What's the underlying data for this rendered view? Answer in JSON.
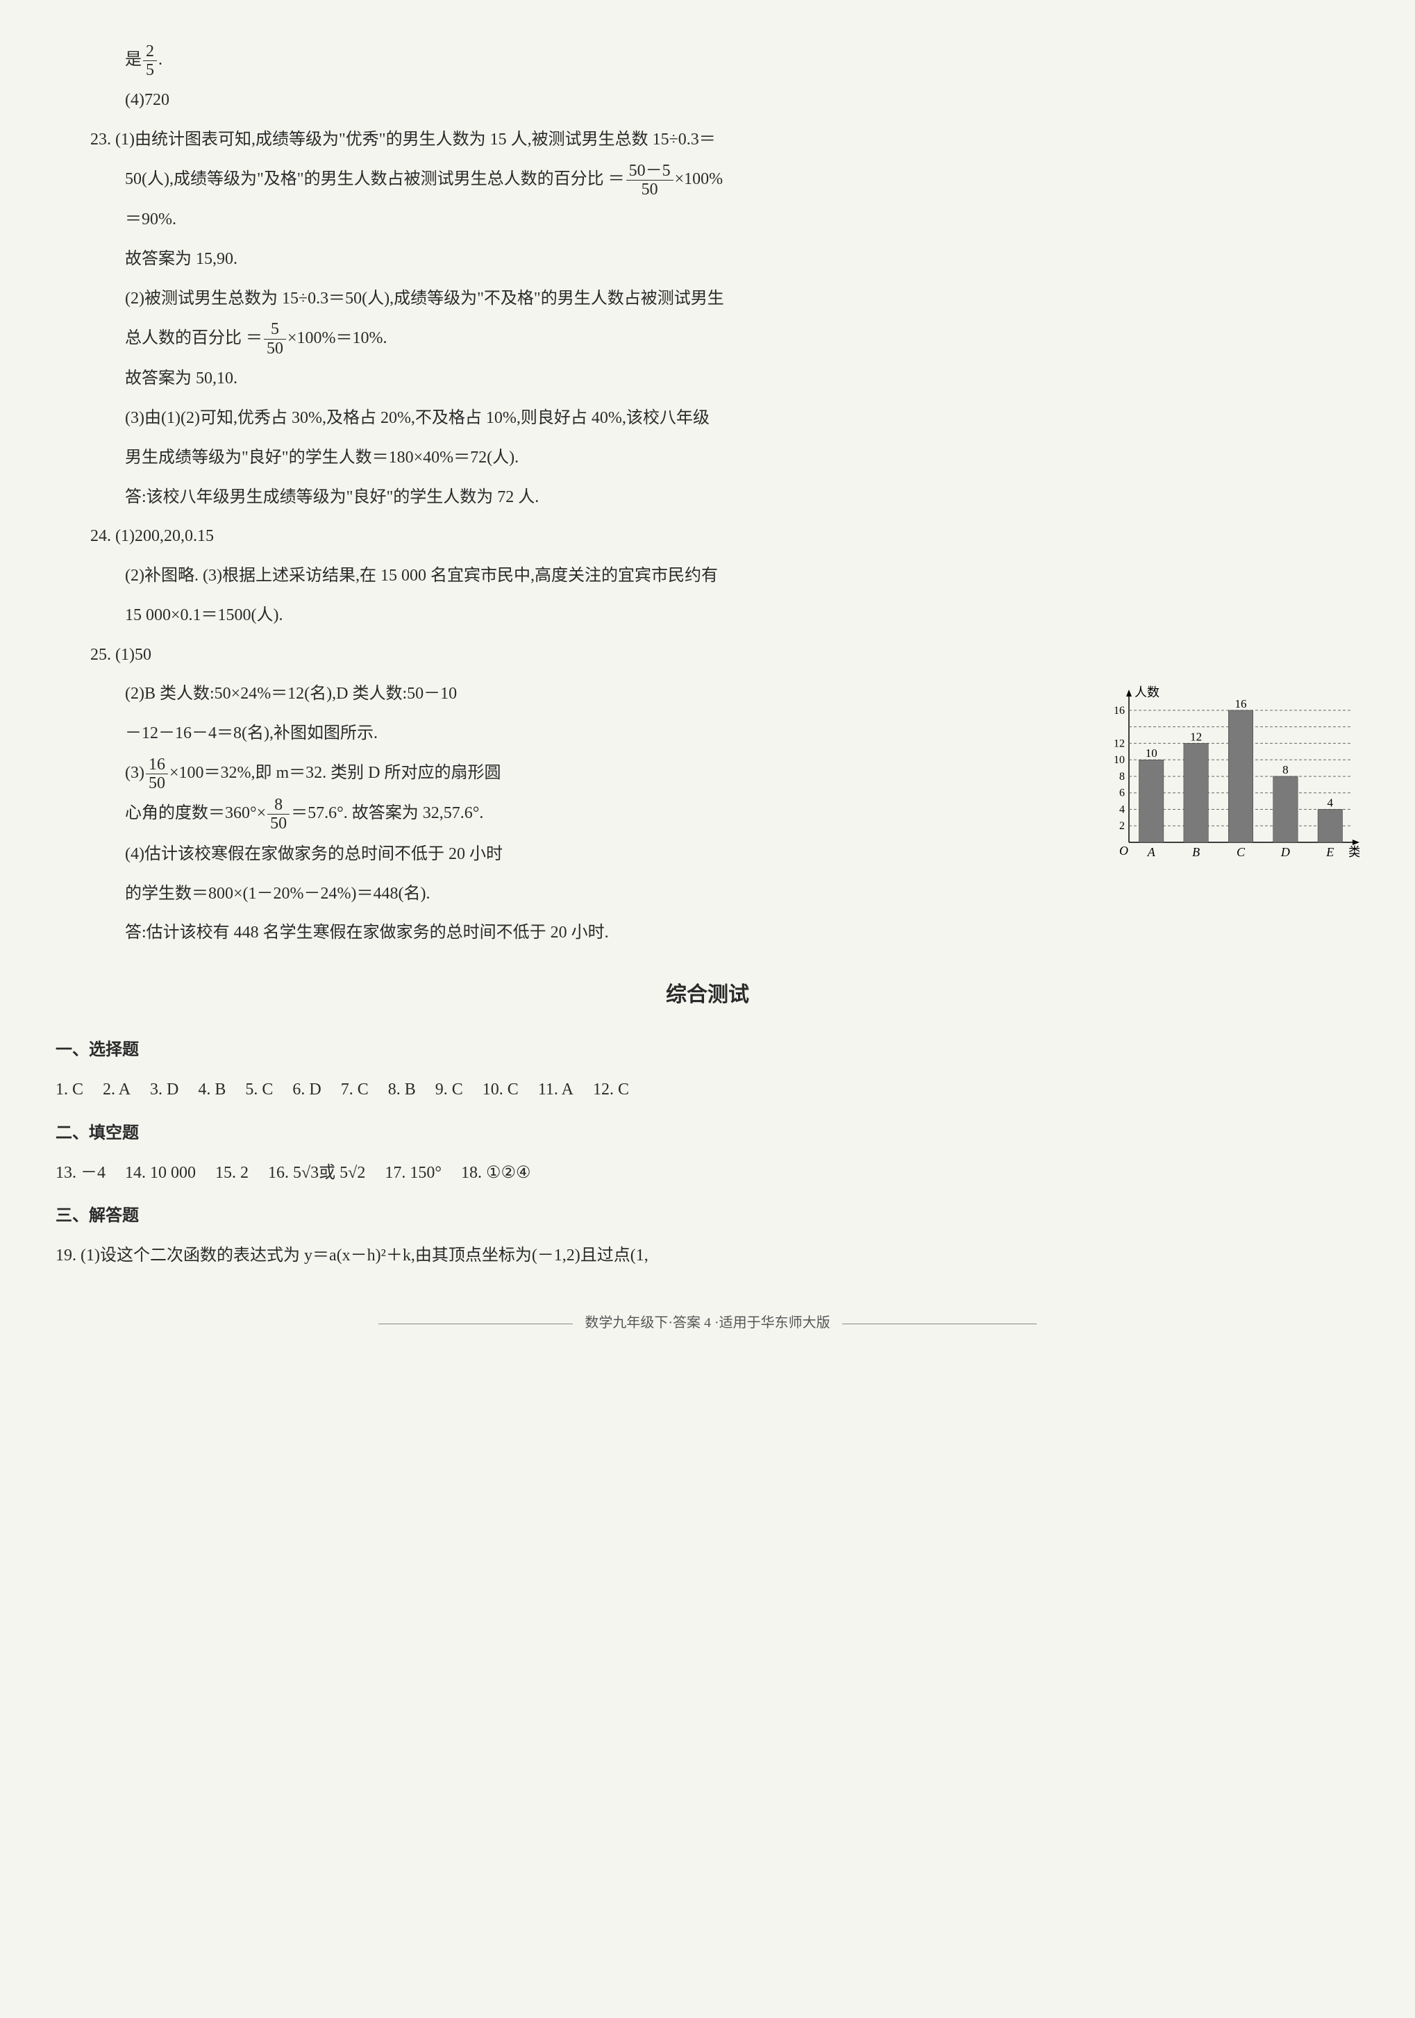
{
  "top": {
    "l1_a": "是",
    "frac_2_5_num": "2",
    "frac_2_5_den": "5",
    "l1_b": ".",
    "l2": "(4)720"
  },
  "q23": {
    "p1a": "23. (1)由统计图表可知,成绩等级为\"优秀\"的男生人数为 15 人,被测试男生总数 15÷0.3＝",
    "p1b_a": "50(人),成绩等级为\"及格\"的男生人数占被测试男生总人数的百分比 ＝",
    "frac1_num": "50－5",
    "frac1_den": "50",
    "p1b_b": "×100%",
    "p1c": "＝90%.",
    "p1d": "故答案为 15,90.",
    "p2a": "(2)被测试男生总数为 15÷0.3＝50(人),成绩等级为\"不及格\"的男生人数占被测试男生",
    "p2b_a": "总人数的百分比 ＝",
    "frac2_num": "5",
    "frac2_den": "50",
    "p2b_b": "×100%＝10%.",
    "p2c": "故答案为 50,10.",
    "p3a": "(3)由(1)(2)可知,优秀占 30%,及格占 20%,不及格占 10%,则良好占 40%,该校八年级",
    "p3b": "男生成绩等级为\"良好\"的学生人数＝180×40%＝72(人).",
    "p3c": "答:该校八年级男生成绩等级为\"良好\"的学生人数为 72 人."
  },
  "q24": {
    "p1": "24. (1)200,20,0.15",
    "p2a": "(2)补图略. (3)根据上述采访结果,在 15 000 名宜宾市民中,高度关注的宜宾市民约有",
    "p2b": "15 000×0.1＝1500(人)."
  },
  "q25": {
    "p1": "25. (1)50",
    "p2a": "(2)B 类人数:50×24%＝12(名),D 类人数:50－10",
    "p2b": "－12－16－4＝8(名),补图如图所示.",
    "p3a_a": "(3)",
    "frac3_num": "16",
    "frac3_den": "50",
    "p3a_b": "×100＝32%,即 m＝32. 类别 D 所对应的扇形圆",
    "p3b_a": "心角的度数＝360°×",
    "frac4_num": "8",
    "frac4_den": "50",
    "p3b_b": "＝57.6°. 故答案为 32,57.6°.",
    "p4a": "(4)估计该校寒假在家做家务的总时间不低于 20 小时",
    "p4b": "的学生数＝800×(1－20%－24%)＝448(名).",
    "p4c": "答:估计该校有 448 名学生寒假在家做家务的总时间不低于 20 小时."
  },
  "chart": {
    "y_label": "人数",
    "x_label": "类别",
    "origin": "O",
    "categories": [
      "A",
      "B",
      "C",
      "D",
      "E"
    ],
    "values": [
      10,
      12,
      16,
      8,
      4
    ],
    "value_labels": [
      "10",
      "12",
      "16",
      "8",
      "4"
    ],
    "y_ticks": [
      2,
      4,
      6,
      8,
      10,
      12,
      14,
      16
    ],
    "y_tick_labels": [
      "2",
      "4",
      "6",
      "8",
      "10",
      "12",
      "16"
    ],
    "bar_color": "#7a7a7a",
    "grid_color": "#666666",
    "axis_color": "#000000",
    "bg_color": "#ffffff",
    "bar_width": 0.55,
    "ylim": [
      0,
      17
    ],
    "label_fontsize": 18
  },
  "comprehensive": {
    "title": "综合测试",
    "h1": "一、选择题",
    "mc": [
      "1. C",
      "2. A",
      "3. D",
      "4. B",
      "5. C",
      "6. D",
      "7. C",
      "8. B",
      "9. C",
      "10. C",
      "11. A",
      "12. C"
    ],
    "h2": "二、填空题",
    "fill": [
      "13. －4",
      "14. 10 000",
      "15. 2",
      "16. 5√3或 5√2",
      "17. 150°",
      "18. ①②④"
    ],
    "h3": "三、解答题",
    "q19": "19. (1)设这个二次函数的表达式为 y＝a(x－h)²＋k,由其顶点坐标为(－1,2)且过点(1,"
  },
  "footer": "数学九年级下·答案 4 ·适用于华东师大版"
}
